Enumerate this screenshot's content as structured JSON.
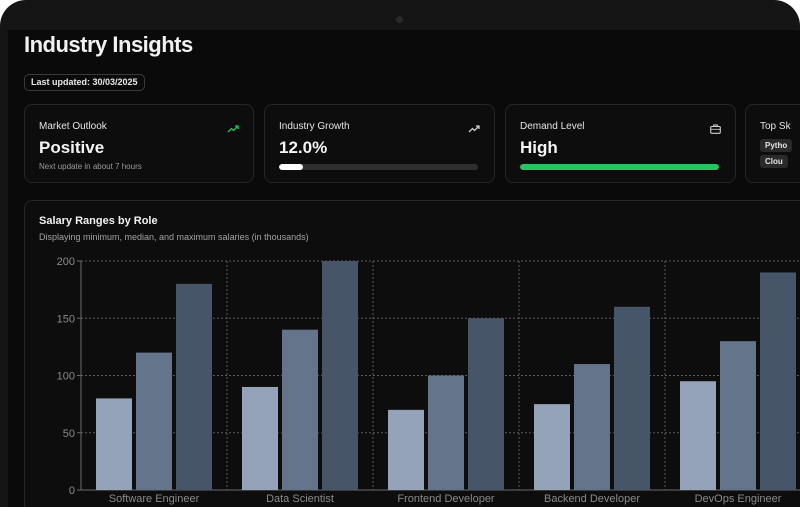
{
  "page": {
    "title": "Industry Insights",
    "last_updated": "Last updated: 30/03/2025"
  },
  "cards": {
    "market_outlook": {
      "label": "Market Outlook",
      "value": "Positive",
      "sub": "Next update in about 7 hours",
      "icon": "trending-up-icon",
      "icon_color": "#22c55e"
    },
    "industry_growth": {
      "label": "Industry Growth",
      "value": "12.0%",
      "progress_percent": 12,
      "icon": "trending-up-icon",
      "bar_color": "#ffffff"
    },
    "demand_level": {
      "label": "Demand Level",
      "value": "High",
      "progress_percent": 100,
      "icon": "briefcase-icon",
      "bar_color": "#22c55e"
    },
    "top_skills": {
      "label": "Top Sk",
      "chips": [
        "Pytho",
        "Clou"
      ]
    }
  },
  "salary_chart": {
    "title": "Salary Ranges by Role",
    "subtitle": "Displaying minimum, median, and maximum salaries (in thousands)"
  },
  "chart_data": {
    "type": "bar",
    "categories": [
      "Software Engineer",
      "Data Scientist",
      "Frontend Developer",
      "Backend Developer",
      "DevOps Engineer"
    ],
    "series": [
      {
        "values": [
          80,
          90,
          70,
          75,
          95
        ],
        "color": "#94a3b8"
      },
      {
        "values": [
          120,
          140,
          100,
          110,
          130
        ],
        "color": "#64748b"
      },
      {
        "values": [
          180,
          200,
          150,
          160,
          190
        ],
        "color": "#475569"
      }
    ],
    "ylim": [
      0,
      200
    ],
    "yticks": [
      0,
      50,
      100,
      150,
      200
    ],
    "grid": true
  }
}
